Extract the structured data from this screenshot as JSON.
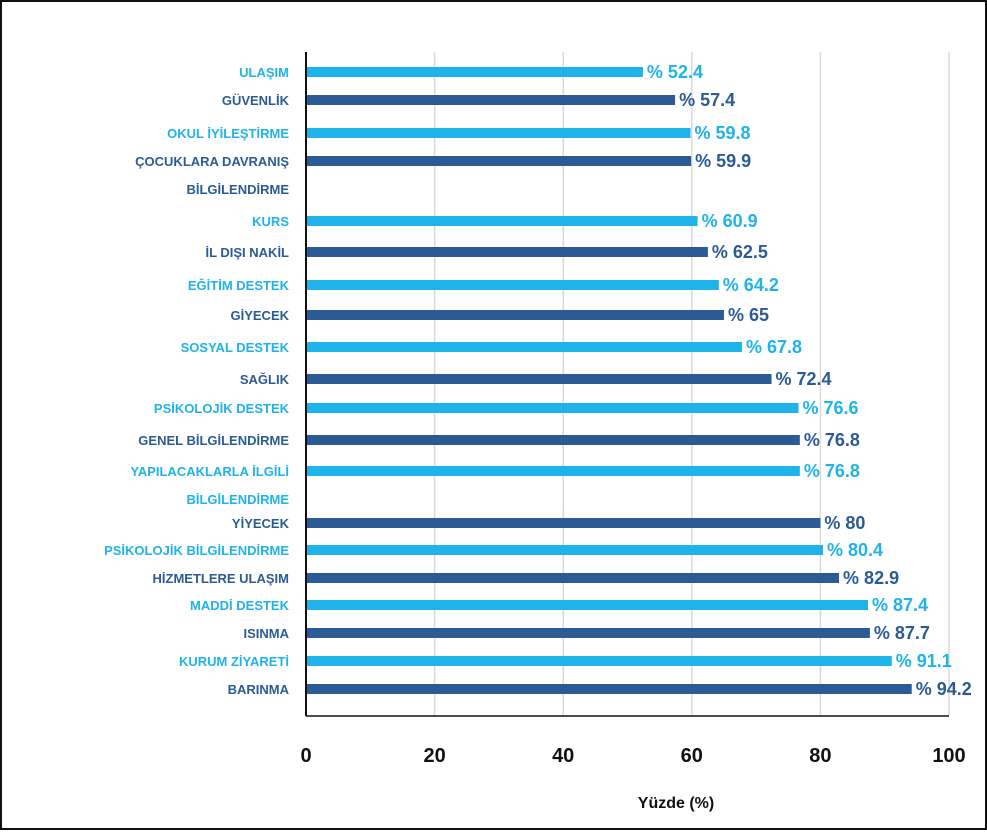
{
  "chart_data": {
    "type": "bar",
    "orientation": "horizontal",
    "xlabel": "Yüzde (%)",
    "xlim": [
      0,
      100
    ],
    "ticks": [
      0,
      20,
      40,
      60,
      80,
      100
    ],
    "grid": true,
    "value_prefix": "% ",
    "colors": {
      "light": "#1fb3ea",
      "dark": "#2b5b94"
    },
    "bars": [
      {
        "lines": [
          "ULAŞIM"
        ],
        "value": 52.4,
        "shade": "light",
        "label": "% 52.4"
      },
      {
        "lines": [
          "GÜVENLİK"
        ],
        "value": 57.4,
        "shade": "dark",
        "label": "% 57.4"
      },
      {
        "lines": [
          "OKUL İYİLEŞTİRME"
        ],
        "value": 59.8,
        "shade": "light",
        "label": "% 59.8"
      },
      {
        "lines": [
          "ÇOCUKLARA DAVRANIŞ",
          "BİLGİLENDİRME"
        ],
        "value": 59.9,
        "shade": "dark",
        "label": "% 59.9"
      },
      {
        "lines": [
          "KURS"
        ],
        "value": 60.9,
        "shade": "light",
        "label": "% 60.9"
      },
      {
        "lines": [
          "İL DIŞI NAKİL"
        ],
        "value": 62.5,
        "shade": "dark",
        "label": "% 62.5"
      },
      {
        "lines": [
          "EĞİTİM DESTEK"
        ],
        "value": 64.2,
        "shade": "light",
        "label": "% 64.2"
      },
      {
        "lines": [
          "GİYECEK"
        ],
        "value": 65,
        "shade": "dark",
        "label": "% 65"
      },
      {
        "lines": [
          "SOSYAL DESTEK"
        ],
        "value": 67.8,
        "shade": "light",
        "label": "% 67.8"
      },
      {
        "lines": [
          "SAĞLIK"
        ],
        "value": 72.4,
        "shade": "dark",
        "label": "% 72.4"
      },
      {
        "lines": [
          "PSİKOLOJİK DESTEK"
        ],
        "value": 76.6,
        "shade": "light",
        "label": "% 76.6"
      },
      {
        "lines": [
          "GENEL BİLGİLENDİRME"
        ],
        "value": 76.8,
        "shade": "dark",
        "label": "% 76.8"
      },
      {
        "lines": [
          "YAPILACAKLARLA İLGİLİ",
          "BİLGİLENDİRME"
        ],
        "value": 76.8,
        "shade": "light",
        "label": "% 76.8"
      },
      {
        "lines": [
          "YİYECEK"
        ],
        "value": 80,
        "shade": "dark",
        "label": "% 80"
      },
      {
        "lines": [
          "PSİKOLOJİK BİLGİLENDİRME"
        ],
        "value": 80.4,
        "shade": "light",
        "label": "% 80.4"
      },
      {
        "lines": [
          "HİZMETLERE ULAŞIM"
        ],
        "value": 82.9,
        "shade": "dark",
        "label": "% 82.9"
      },
      {
        "lines": [
          "MADDİ DESTEK"
        ],
        "value": 87.4,
        "shade": "light",
        "label": "% 87.4"
      },
      {
        "lines": [
          "ISINMA"
        ],
        "value": 87.7,
        "shade": "dark",
        "label": "% 87.7"
      },
      {
        "lines": [
          "KURUM ZİYARETİ"
        ],
        "value": 91.1,
        "shade": "light",
        "label": "% 91.1"
      },
      {
        "lines": [
          "BARINMA"
        ],
        "value": 94.2,
        "shade": "dark",
        "label": "% 94.2"
      }
    ]
  }
}
